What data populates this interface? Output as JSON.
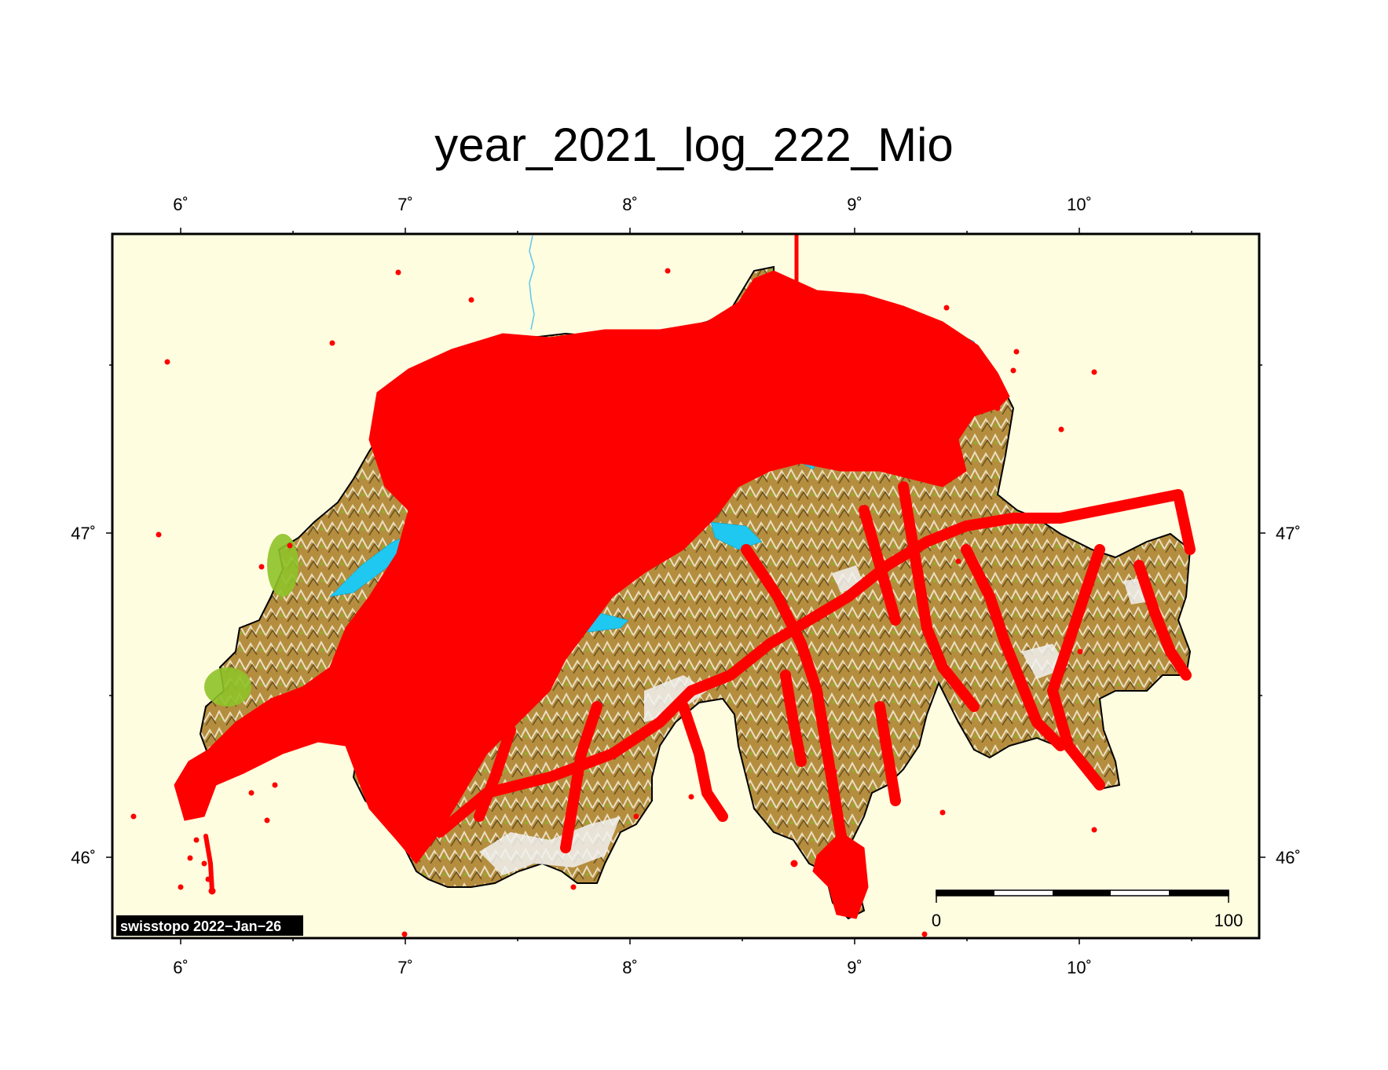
{
  "title": "year_2021_log_222_Mio",
  "frame": {
    "lon_ticks": [
      "6˚",
      "7˚",
      "8˚",
      "9˚",
      "10˚"
    ],
    "lat_ticks": [
      "47˚",
      "46˚"
    ]
  },
  "credit": "swisstopo 2022−Jan−26",
  "scalebar": {
    "min_label": "0",
    "max_label": "100"
  },
  "colors": {
    "background": "#fffde0",
    "track_points": "#ff0000",
    "lakes": "#1ec8f0",
    "lowland": "#8fc229",
    "mountains": "#b08a3c",
    "glaciers": "#f0f0f0"
  },
  "map": {
    "region": "Switzerland",
    "layers": [
      "shaded-relief",
      "lakes",
      "border",
      "gps-track-points"
    ]
  }
}
